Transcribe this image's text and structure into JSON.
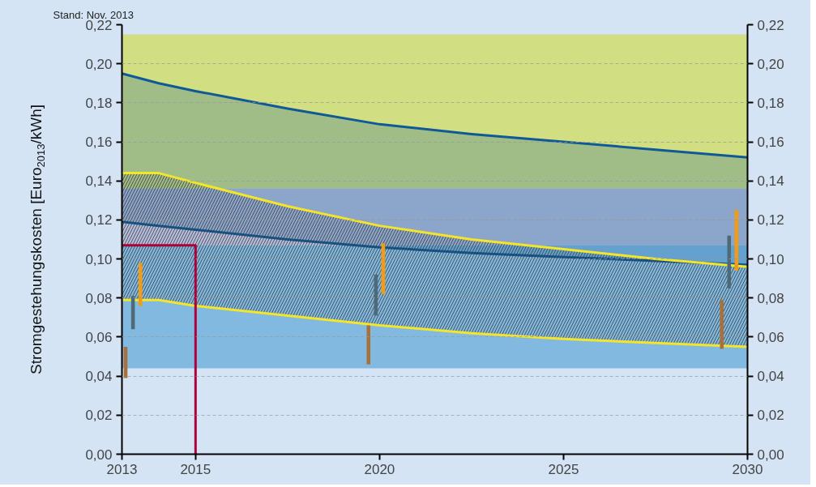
{
  "chart_data": {
    "type": "line",
    "annotations": [
      "Stand: Nov. 2013"
    ],
    "ylabel": "Stromgestehungskosten [Euro$_{2013}$/kWh]",
    "xlim": [
      2013,
      2030
    ],
    "xticks": [
      2013,
      2015,
      2020,
      2025,
      2030
    ],
    "ylim": [
      0,
      0.22
    ],
    "yticks": [
      {
        "value": 0,
        "label": "0,00"
      },
      {
        "value": 0.02,
        "label": "0,02"
      },
      {
        "value": 0.04,
        "label": "0,04"
      },
      {
        "value": 0.06,
        "label": "0,06"
      },
      {
        "value": 0.08,
        "label": "0,08"
      },
      {
        "value": 0.1,
        "label": "0,10"
      },
      {
        "value": 0.12,
        "label": "0,12"
      },
      {
        "value": 0.14,
        "label": "0,14"
      },
      {
        "value": 0.16,
        "label": "0,16"
      },
      {
        "value": 0.18,
        "label": "0,18"
      },
      {
        "value": 0.2,
        "label": "0,20"
      },
      {
        "value": 0.22,
        "label": "0,22"
      }
    ],
    "y2lim": [
      0,
      0.22
    ],
    "y2ticks": [
      {
        "value": 0,
        "label": "0,00"
      },
      {
        "value": 0.02,
        "label": "0,02"
      },
      {
        "value": 0.04,
        "label": "0,04"
      },
      {
        "value": 0.06,
        "label": "0,06"
      },
      {
        "value": 0.08,
        "label": "0,08"
      },
      {
        "value": 0.1,
        "label": "0,10"
      },
      {
        "value": 0.12,
        "label": "0,12"
      },
      {
        "value": 0.14,
        "label": "0,14"
      },
      {
        "value": 0.16,
        "label": "0,16"
      },
      {
        "value": 0.18,
        "label": "0,18"
      },
      {
        "value": 0.2,
        "label": "0,20"
      },
      {
        "value": 0.22,
        "label": "0,22"
      }
    ],
    "grid": "y",
    "marker": "none",
    "line_style": "solid",
    "bands": [
      {
        "axis": "y",
        "from": 0.136,
        "to": 0.215,
        "color": "#d1de82"
      },
      {
        "axis": "y",
        "from": 0.107,
        "to": 0.136,
        "color": "#b6bedd"
      },
      {
        "axis": "y",
        "from": 0.044,
        "to": 0.107,
        "color": "#82b9e0"
      }
    ],
    "series": [
      {
        "color": "#0f5a96",
        "x": [
          2013,
          2014,
          2015,
          2017.5,
          2020,
          2022.5,
          2025,
          2027.5,
          2030
        ],
        "values": [
          0.195,
          0.19,
          0.186,
          0.177,
          0.169,
          0.164,
          0.16,
          0.156,
          0.152
        ],
        "lower": [
          0.119,
          0.117,
          0.115,
          0.11,
          0.106,
          0.103,
          0.101,
          0.099,
          0.097
        ],
        "upper": [
          0.195,
          0.19,
          0.186,
          0.177,
          0.169,
          0.164,
          0.16,
          0.156,
          0.152
        ]
      },
      {
        "color": "#0f5a96",
        "x": [
          2013,
          2014,
          2015,
          2017.5,
          2020,
          2022.5,
          2025,
          2027.5,
          2030
        ],
        "values": [
          0.119,
          0.117,
          0.115,
          0.11,
          0.106,
          0.103,
          0.101,
          0.099,
          0.097
        ]
      },
      {
        "color": "#f5e52a",
        "x": [
          2013,
          2014,
          2015,
          2017.5,
          2020,
          2022.5,
          2025,
          2027.5,
          2030
        ],
        "values": [
          0.144,
          0.144,
          0.139,
          0.127,
          0.117,
          0.11,
          0.105,
          0.1,
          0.096
        ],
        "lower": [
          0.079,
          0.079,
          0.076,
          0.071,
          0.066,
          0.062,
          0.059,
          0.057,
          0.055
        ],
        "upper": [
          0.144,
          0.144,
          0.139,
          0.127,
          0.117,
          0.11,
          0.105,
          0.1,
          0.096
        ]
      },
      {
        "color": "#f5e52a",
        "x": [
          2013,
          2014,
          2015,
          2017.5,
          2020,
          2022.5,
          2025,
          2027.5,
          2030
        ],
        "values": [
          0.079,
          0.079,
          0.076,
          0.071,
          0.066,
          0.062,
          0.059,
          0.057,
          0.055
        ]
      },
      {
        "type": "bar",
        "color": "#a8703a",
        "x": [
          2013.1,
          2019.7,
          2029.3
        ],
        "base": [
          0.039,
          0.046,
          0.054
        ],
        "values": [
          0.016,
          0.02,
          0.025
        ]
      },
      {
        "type": "bar",
        "color": "#4e6a78",
        "x": [
          2013.3,
          2019.9,
          2029.5
        ],
        "base": [
          0.064,
          0.071,
          0.085
        ],
        "values": [
          0.017,
          0.021,
          0.027
        ]
      },
      {
        "type": "bar",
        "color": "#f39c12",
        "x": [
          2013.5,
          2020.1,
          2029.7
        ],
        "base": [
          0.076,
          0.082,
          0.094
        ],
        "values": [
          0.022,
          0.026,
          0.031
        ]
      },
      {
        "color": "#b0003a",
        "x": [
          2013,
          2015,
          2015
        ],
        "values": [
          0.107,
          0.107,
          0
        ]
      }
    ]
  }
}
